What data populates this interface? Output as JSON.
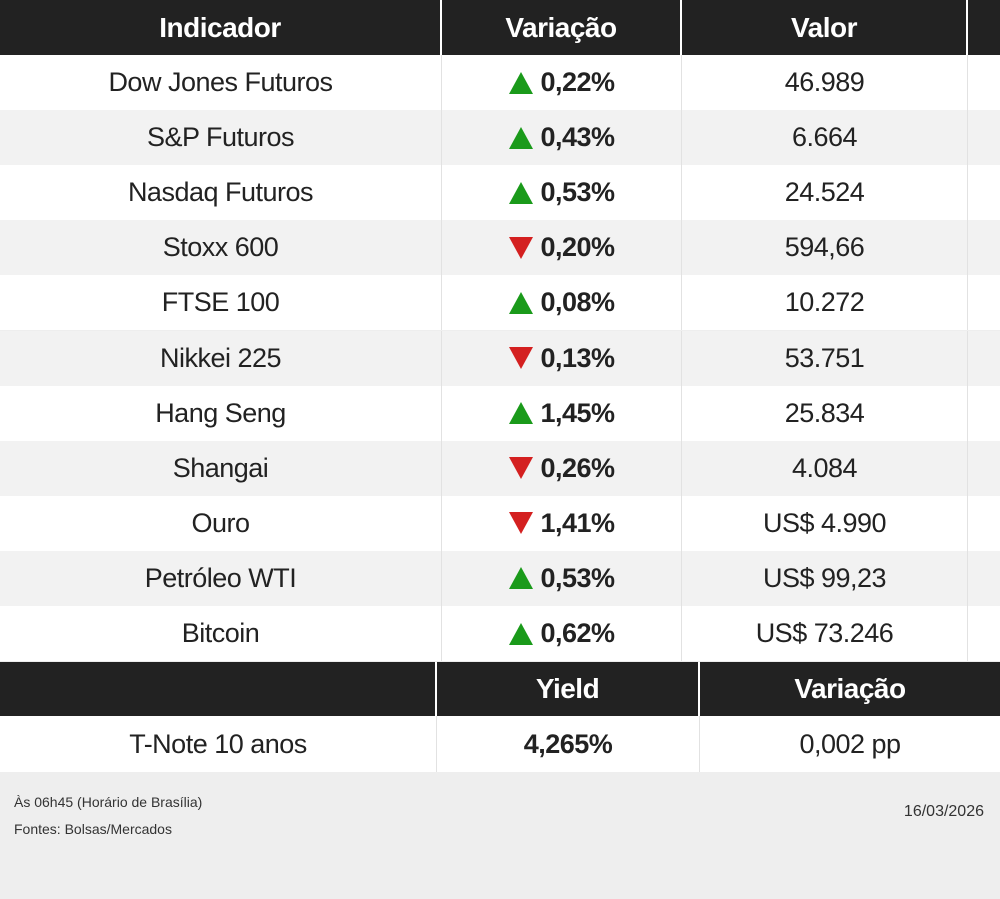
{
  "table": {
    "columns": [
      "Indicador",
      "Variação",
      "Valor"
    ],
    "rows": [
      {
        "name": "Dow Jones Futuros",
        "change": "0,22%",
        "direction": "up",
        "value": "46.989"
      },
      {
        "name": "S&P Futuros",
        "change": "0,43%",
        "direction": "up",
        "value": "6.664"
      },
      {
        "name": "Nasdaq Futuros",
        "change": "0,53%",
        "direction": "up",
        "value": "24.524"
      },
      {
        "name": "Stoxx 600",
        "change": "0,20%",
        "direction": "down",
        "value": "594,66"
      },
      {
        "name": "FTSE 100",
        "change": "0,08%",
        "direction": "up",
        "value": "10.272"
      },
      {
        "name": "Nikkei 225",
        "change": "0,13%",
        "direction": "down",
        "value": "53.751"
      },
      {
        "name": "Hang Seng",
        "change": "1,45%",
        "direction": "up",
        "value": "25.834"
      },
      {
        "name": "Shangai",
        "change": "0,26%",
        "direction": "down",
        "value": "4.084"
      },
      {
        "name": "Ouro",
        "change": "1,41%",
        "direction": "down",
        "value": "US$ 4.990"
      },
      {
        "name": "Petróleo WTI",
        "change": "0,53%",
        "direction": "up",
        "value": "US$ 99,23"
      },
      {
        "name": "Bitcoin",
        "change": "0,62%",
        "direction": "up",
        "value": "US$ 73.246"
      }
    ]
  },
  "bonds": {
    "columns": [
      "Yield",
      "Variação"
    ],
    "rows": [
      {
        "name": "T-Note 10 anos",
        "yield": "4,265%",
        "change": "0,002 pp"
      }
    ]
  },
  "footer": {
    "notes": [
      "Às 06h45 (Horário de Brasília)",
      "Fontes: Bolsas/Mercados"
    ],
    "date": "16/03/2026"
  }
}
